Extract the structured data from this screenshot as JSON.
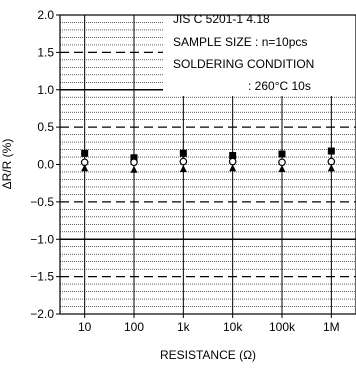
{
  "chart_data": {
    "type": "scatter",
    "title": "",
    "xlabel": "RESISTANCE (Ω)",
    "ylabel": "ΔR/R (%)",
    "x_scale": "log",
    "xlim": [
      3.162,
      3162278
    ],
    "ylim": [
      -2.0,
      2.0
    ],
    "x_ticks": [
      {
        "value": 10,
        "label": "10"
      },
      {
        "value": 100,
        "label": "100"
      },
      {
        "value": 1000,
        "label": "1k"
      },
      {
        "value": 10000,
        "label": "10k"
      },
      {
        "value": 100000,
        "label": "100k"
      },
      {
        "value": 1000000,
        "label": "1M"
      }
    ],
    "y_ticks": [
      {
        "value": 2.0,
        "label": "2.0"
      },
      {
        "value": 1.5,
        "label": "1.5"
      },
      {
        "value": 1.0,
        "label": "1.0"
      },
      {
        "value": 0.5,
        "label": "0.5"
      },
      {
        "value": 0.0,
        "label": "0.0"
      },
      {
        "value": -0.5,
        "label": "−0.5"
      },
      {
        "value": -1.0,
        "label": "−1.0"
      },
      {
        "value": -1.5,
        "label": "−1.5"
      },
      {
        "value": -2.0,
        "label": "−2.0"
      }
    ],
    "reference_lines": [
      {
        "y": 1.0,
        "style": "solid"
      },
      {
        "y": -1.0,
        "style": "solid"
      },
      {
        "y": 1.5,
        "style": "dashed"
      },
      {
        "y": 0.5,
        "style": "dashed"
      },
      {
        "y": -0.5,
        "style": "dashed"
      },
      {
        "y": -1.5,
        "style": "dashed"
      }
    ],
    "grid": true,
    "annotation": {
      "lines": [
        "JIS C 5201-1 4.18",
        "SAMPLE SIZE : n=10pcs",
        "SOLDERING CONDITION",
        ": 260°C 10s"
      ]
    },
    "series": [
      {
        "marker": "square-filled",
        "x": [
          10,
          100,
          1000,
          10000,
          100000,
          1000000
        ],
        "values": [
          0.15,
          0.09,
          0.15,
          0.12,
          0.14,
          0.18
        ]
      },
      {
        "marker": "circle-open",
        "x": [
          10,
          100,
          1000,
          10000,
          100000,
          1000000
        ],
        "values": [
          0.03,
          0.03,
          0.04,
          0.04,
          0.03,
          0.04
        ]
      },
      {
        "marker": "triangle-filled",
        "x": [
          10,
          100,
          1000,
          10000,
          100000,
          1000000
        ],
        "values": [
          -0.05,
          -0.07,
          -0.06,
          -0.05,
          -0.06,
          -0.05
        ]
      }
    ],
    "colors": {
      "axis": "#000000",
      "grid": "#000000",
      "markers": "#000000"
    }
  }
}
